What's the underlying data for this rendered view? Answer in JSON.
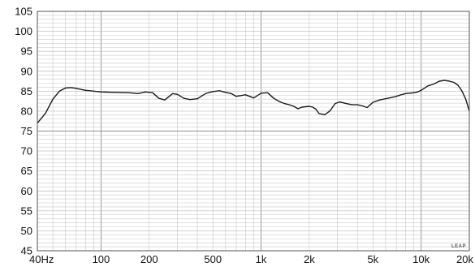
{
  "chart_data": {
    "type": "line",
    "x_scale": "log",
    "xlim": [
      40,
      20000
    ],
    "ylim": [
      45,
      105
    ],
    "y_ticks": [
      45,
      50,
      55,
      60,
      65,
      70,
      75,
      80,
      85,
      90,
      95,
      100,
      105
    ],
    "y_tick_labels": [
      "45",
      "50",
      "55",
      "60",
      "65",
      "70",
      "75",
      "80",
      "85",
      "90",
      "95",
      "100",
      "105"
    ],
    "x_ticks": [
      40,
      100,
      200,
      500,
      1000,
      2000,
      5000,
      10000,
      20000
    ],
    "x_tick_labels": [
      "40Hz",
      "100",
      "200",
      "500",
      "1k",
      "2k",
      "5k",
      "10k",
      "20k"
    ],
    "grid": true,
    "watermark": "LEAP",
    "series": [
      {
        "x": [
          40,
          45,
          50,
          55,
          60,
          65,
          70,
          80,
          90,
          100,
          120,
          150,
          170,
          190,
          210,
          230,
          250,
          280,
          300,
          330,
          360,
          400,
          450,
          500,
          550,
          600,
          650,
          700,
          800,
          900,
          1000,
          1100,
          1200,
          1300,
          1400,
          1500,
          1600,
          1700,
          1800,
          1900,
          2000,
          2100,
          2200,
          2300,
          2500,
          2700,
          2900,
          3100,
          3400,
          3700,
          4000,
          4300,
          4600,
          5000,
          5500,
          6000,
          6500,
          7000,
          7500,
          8000,
          8500,
          9000,
          9500,
          10000,
          11000,
          12000,
          13000,
          14000,
          15000,
          16000,
          17000,
          18000,
          19000,
          20000
        ],
        "y": [
          77,
          79.5,
          83,
          85,
          85.8,
          85.9,
          85.7,
          85.2,
          85,
          84.8,
          84.7,
          84.6,
          84.4,
          84.8,
          84.6,
          83.2,
          82.8,
          84.4,
          84.2,
          83.2,
          82.9,
          83.1,
          84.4,
          84.9,
          85.1,
          84.7,
          84.4,
          83.7,
          84.1,
          83.3,
          84.5,
          84.6,
          83.2,
          82.4,
          81.9,
          81.6,
          81.2,
          80.6,
          81,
          81.1,
          81.2,
          81,
          80.5,
          79.4,
          79.1,
          80.1,
          81.9,
          82.3,
          81.9,
          81.6,
          81.6,
          81.3,
          80.9,
          82.2,
          82.8,
          83.1,
          83.4,
          83.7,
          84.1,
          84.4,
          84.5,
          84.6,
          84.8,
          85.2,
          86.3,
          86.8,
          87.5,
          87.7,
          87.5,
          87.2,
          86.5,
          85,
          83,
          80
        ]
      }
    ]
  }
}
